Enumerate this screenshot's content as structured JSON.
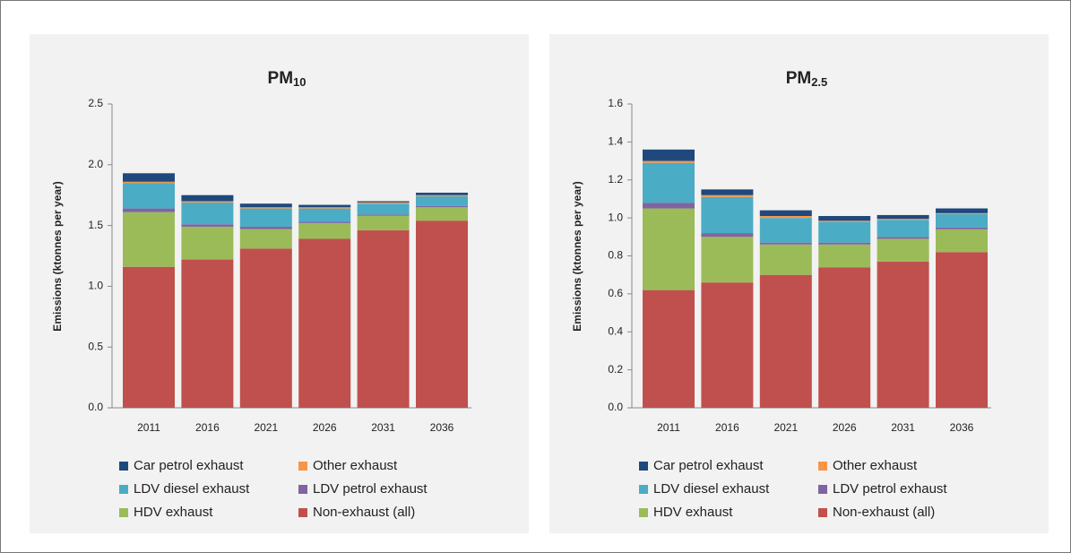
{
  "chart_data": [
    {
      "type": "stacked_bar",
      "title": "PM",
      "title_sub": "10",
      "y_label": "Emissions (ktonnes per year)",
      "categories": [
        "2011",
        "2016",
        "2021",
        "2026",
        "2031",
        "2036"
      ],
      "ylim": [
        0,
        2.5
      ],
      "yticks": [
        {
          "value": 0,
          "label": "0.0"
        },
        0.5,
        {
          "value": 1,
          "label": "1.0"
        },
        1.5,
        {
          "value": 2,
          "label": "2.0"
        },
        2.5
      ],
      "series": [
        {
          "name": "Car petrol exhaust",
          "color": "#1f497d",
          "values": [
            0.07,
            0.05,
            0.03,
            0.02,
            0.01,
            0.02
          ]
        },
        {
          "name": "Other exhaust",
          "color": "#f79646",
          "values": [
            0.01,
            0.01,
            0.01,
            0.01,
            0.01,
            0.01
          ]
        },
        {
          "name": "LDV diesel exhaust",
          "color": "#4bacc6",
          "values": [
            0.21,
            0.18,
            0.15,
            0.11,
            0.09,
            0.08
          ]
        },
        {
          "name": "LDV petrol exhaust",
          "color": "#8064a2",
          "values": [
            0.03,
            0.02,
            0.02,
            0.01,
            0.01,
            0.01
          ]
        },
        {
          "name": "HDV exhaust",
          "color": "#9bbb59",
          "values": [
            0.45,
            0.27,
            0.16,
            0.13,
            0.12,
            0.11
          ]
        },
        {
          "name": "Non-exhaust (all)",
          "color": "#c0504d",
          "values": [
            1.16,
            1.22,
            1.31,
            1.39,
            1.46,
            1.54
          ]
        }
      ]
    },
    {
      "type": "stacked_bar",
      "title": "PM",
      "title_sub": "2.5",
      "y_label": "Emissions (ktonnes per year)",
      "categories": [
        "2011",
        "2016",
        "2021",
        "2026",
        "2031",
        "2036"
      ],
      "ylim": [
        0,
        1.6
      ],
      "yticks": [
        {
          "value": 0,
          "label": "0.0"
        },
        0.2,
        0.4,
        0.6,
        0.8,
        {
          "value": 1,
          "label": "1.0"
        },
        1.2,
        1.4,
        1.6
      ],
      "series": [
        {
          "name": "Car petrol exhaust",
          "color": "#1f497d",
          "values": [
            0.06,
            0.03,
            0.03,
            0.025,
            0.02,
            0.025
          ]
        },
        {
          "name": "Other exhaust",
          "color": "#f79646",
          "values": [
            0.01,
            0.01,
            0.01,
            0.005,
            0.005,
            0.005
          ]
        },
        {
          "name": "LDV diesel exhaust",
          "color": "#4bacc6",
          "values": [
            0.21,
            0.19,
            0.13,
            0.11,
            0.09,
            0.07
          ]
        },
        {
          "name": "LDV petrol exhaust",
          "color": "#8064a2",
          "values": [
            0.03,
            0.02,
            0.01,
            0.01,
            0.01,
            0.01
          ]
        },
        {
          "name": "HDV exhaust",
          "color": "#9bbb59",
          "values": [
            0.43,
            0.24,
            0.16,
            0.12,
            0.12,
            0.12
          ]
        },
        {
          "name": "Non-exhaust (all)",
          "color": "#c0504d",
          "values": [
            0.62,
            0.66,
            0.7,
            0.74,
            0.77,
            0.82
          ]
        }
      ]
    }
  ]
}
